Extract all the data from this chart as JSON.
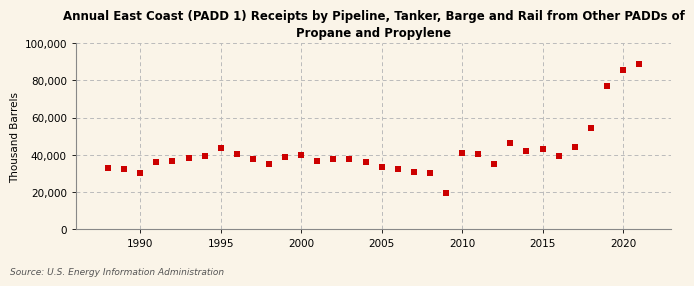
{
  "title": "Annual East Coast (PADD 1) Receipts by Pipeline, Tanker, Barge and Rail from Other PADDs of\nPropane and Propylene",
  "ylabel": "Thousand Barrels",
  "source": "Source: U.S. Energy Information Administration",
  "background_color": "#faf4e8",
  "plot_background_color": "#faf4e8",
  "marker_color": "#cc0000",
  "marker": "s",
  "markersize": 4.5,
  "years": [
    1988,
    1989,
    1990,
    1991,
    1992,
    1993,
    1994,
    1995,
    1996,
    1997,
    1998,
    1999,
    2000,
    2001,
    2002,
    2003,
    2004,
    2005,
    2006,
    2007,
    2008,
    2009,
    2010,
    2011,
    2012,
    2013,
    2014,
    2015,
    2016,
    2017,
    2018,
    2019,
    2020,
    2021
  ],
  "values": [
    33000,
    32500,
    30500,
    36000,
    37000,
    38500,
    39500,
    43500,
    40500,
    38000,
    35000,
    39000,
    40000,
    37000,
    38000,
    38000,
    36000,
    33500,
    32500,
    31000,
    30500,
    19500,
    41000,
    40500,
    35000,
    46500,
    42000,
    43000,
    39500,
    44500,
    54500,
    77000,
    85500,
    89000
  ],
  "xlim": [
    1986,
    2023
  ],
  "ylim": [
    0,
    100000
  ],
  "yticks": [
    0,
    20000,
    40000,
    60000,
    80000,
    100000
  ],
  "xticks": [
    1990,
    1995,
    2000,
    2005,
    2010,
    2015,
    2020
  ],
  "grid_color": "#bbbbbb",
  "grid_linestyle": "--",
  "title_fontsize": 8.5,
  "ylabel_fontsize": 7.5,
  "tick_fontsize": 7.5,
  "source_fontsize": 6.5
}
